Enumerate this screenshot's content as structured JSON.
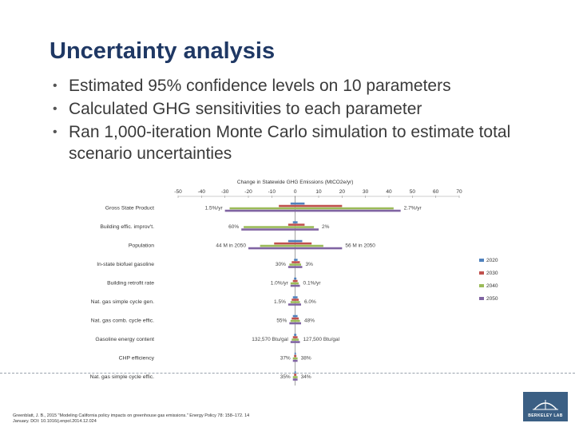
{
  "slide": {
    "title": "Uncertainty analysis",
    "bullets": [
      "Estimated 95% confidence levels on 10 parameters",
      "Calculated GHG sensitivities to each parameter",
      "Ran 1,000-iteration Monte Carlo simulation to estimate total scenario uncertainties"
    ],
    "citation_line1": "Greenblatt, J. B., 2015 \"Modeling California policy impacts on greenhouse gas emissions.\" Energy Policy 78: 158–172. 14",
    "citation_line2": "January. DOI: 10.1016/j.enpol.2014.12.024",
    "logo_text": "BERKELEY LAB"
  },
  "colors": {
    "title": "#1f3864",
    "s2020": "#4f81bd",
    "s2030": "#c0504d",
    "s2040": "#9bbb59",
    "s2050": "#8064a2"
  },
  "chart_data": {
    "type": "bar",
    "orientation": "horizontal",
    "title": "Change in Statewide GHG Emissions (MtCO2e/yr)",
    "xlim": [
      -50,
      70
    ],
    "xticks": [
      -50,
      -40,
      -30,
      -20,
      -10,
      0,
      10,
      20,
      30,
      40,
      50,
      60,
      70
    ],
    "categories": [
      "Gross State Product",
      "Building effic. improv't.",
      "Population",
      "In-state biofuel gasoline",
      "Building retrofit rate",
      "Nat. gas simple cycle gen.",
      "Nat. gas comb. cycle effic.",
      "Gasoline energy content",
      "CHP efficiency",
      "Nat. gas simple cycle effic."
    ],
    "low_labels": [
      "1.5%/yr",
      "60%",
      "44 M in 2050",
      "30%",
      "1.0%/yr",
      "1.5%",
      "55%",
      "132,570 Btu/gal",
      "37%",
      "35%"
    ],
    "high_labels": [
      "2.7%/yr",
      "2%",
      "56 M in 2050",
      "3%",
      "0.1%/yr",
      "6.0%",
      "48%",
      "127,500 Btu/gal",
      "38%",
      "34%"
    ],
    "series": [
      {
        "name": "2020",
        "low": [
          -2,
          -1,
          -3,
          -0.5,
          -0.5,
          -1,
          -1,
          -0.5,
          -0.3,
          -0.3
        ],
        "high": [
          4,
          1,
          3,
          1,
          0.5,
          1,
          1,
          0.5,
          0.3,
          0.3
        ]
      },
      {
        "name": "2030",
        "low": [
          -7,
          -3,
          -9,
          -1.5,
          -1,
          -1.5,
          -1.5,
          -1,
          -0.5,
          -0.5
        ],
        "high": [
          20,
          4,
          7,
          2,
          1,
          1.5,
          1.5,
          1,
          0.5,
          0.5
        ]
      },
      {
        "name": "2040",
        "low": [
          -28,
          -22,
          -15,
          -2.5,
          -2,
          -2,
          -2,
          -1.5,
          -1,
          -1
        ],
        "high": [
          42,
          8,
          12,
          2.5,
          1.5,
          2,
          2,
          1.5,
          1,
          1
        ]
      },
      {
        "name": "2050",
        "low": [
          -30,
          -23,
          -20,
          -3,
          -2,
          -3,
          -2.5,
          -2,
          -1,
          -1
        ],
        "high": [
          45,
          10,
          20,
          3,
          2,
          2.5,
          2.5,
          2,
          1,
          1
        ]
      }
    ]
  }
}
